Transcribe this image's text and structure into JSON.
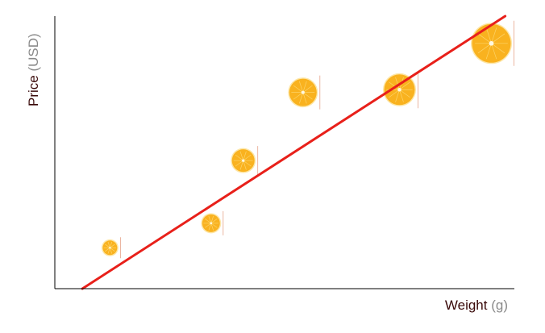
{
  "chart_data": {
    "type": "scatter",
    "xlabel": "Weight",
    "xlabel_unit": "(g)",
    "ylabel": "Price",
    "ylabel_unit": "(USD)",
    "xlim": [
      0,
      100
    ],
    "ylim": [
      0,
      100
    ],
    "grid": false,
    "marker": "orange-slice",
    "points": [
      {
        "x": 12,
        "y": 15,
        "size": 9
      },
      {
        "x": 34,
        "y": 24,
        "size": 11
      },
      {
        "x": 41,
        "y": 47,
        "size": 14
      },
      {
        "x": 54,
        "y": 72,
        "size": 17
      },
      {
        "x": 75,
        "y": 73,
        "size": 19
      },
      {
        "x": 95,
        "y": 90,
        "size": 24
      }
    ],
    "trendline": {
      "color": "#e8201a",
      "from": [
        6,
        0
      ],
      "to": [
        98,
        100
      ]
    },
    "colors": {
      "orange": "#f9b21f",
      "rind": "#fde6a6",
      "axis": "#000000"
    }
  }
}
